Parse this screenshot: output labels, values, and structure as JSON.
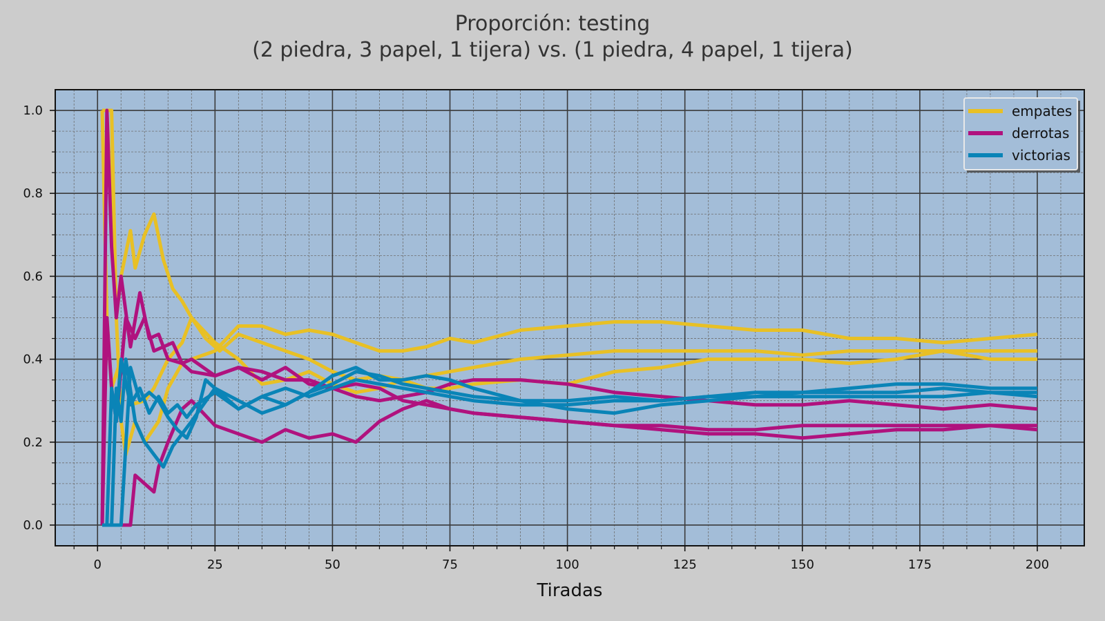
{
  "chart_data": {
    "type": "line",
    "title": "Proporción: testing",
    "subtitle": "(2 piedra, 3 papel, 1 tijera) vs. (1 piedra, 4 papel, 1 tijera)",
    "xlabel": "Tiradas",
    "ylabel": "",
    "xlim": [
      -9,
      210
    ],
    "ylim": [
      -0.05,
      1.05
    ],
    "xticks": [
      0,
      25,
      50,
      75,
      100,
      125,
      150,
      175,
      200
    ],
    "yticks": [
      0.0,
      0.2,
      0.4,
      0.6,
      0.8,
      1.0
    ],
    "xtick_labels": [
      "0",
      "25",
      "50",
      "75",
      "100",
      "125",
      "150",
      "175",
      "200"
    ],
    "ytick_labels": [
      "0.0",
      "0.2",
      "0.4",
      "0.6",
      "0.8",
      "1.0"
    ],
    "grid": "major and minor",
    "legend_position": "top-right",
    "background": "#a3bdd8",
    "series": [
      {
        "name": "empates",
        "color": "#e8c025",
        "show_in_legend": true,
        "x": [
          1,
          2,
          4,
          5,
          7,
          8,
          10,
          12,
          14,
          16,
          18,
          20,
          23,
          26,
          30,
          35,
          40,
          45,
          50,
          55,
          60,
          65,
          70,
          75,
          80,
          90,
          100,
          110,
          120,
          130,
          140,
          150,
          160,
          170,
          180,
          190,
          200
        ],
        "y": [
          1.0,
          1.0,
          0.5,
          0.6,
          0.71,
          0.62,
          0.7,
          0.75,
          0.64,
          0.57,
          0.54,
          0.5,
          0.45,
          0.42,
          0.46,
          0.44,
          0.42,
          0.4,
          0.37,
          0.35,
          0.36,
          0.35,
          0.36,
          0.37,
          0.38,
          0.4,
          0.41,
          0.42,
          0.42,
          0.42,
          0.42,
          0.41,
          0.42,
          0.42,
          0.42,
          0.42,
          0.42
        ]
      },
      {
        "name": "empates",
        "color": "#e8c025",
        "show_in_legend": false,
        "x": [
          1,
          3,
          4,
          5,
          6,
          8,
          10,
          13,
          15,
          18,
          20,
          25,
          30,
          35,
          40,
          45,
          50,
          55,
          60,
          65,
          70,
          75,
          80,
          90,
          100,
          110,
          120,
          130,
          140,
          150,
          160,
          170,
          180,
          190,
          200
        ],
        "y": [
          1.0,
          1.0,
          0.5,
          0.25,
          0.17,
          0.25,
          0.2,
          0.25,
          0.33,
          0.39,
          0.4,
          0.42,
          0.48,
          0.48,
          0.46,
          0.47,
          0.46,
          0.44,
          0.42,
          0.42,
          0.43,
          0.45,
          0.44,
          0.47,
          0.48,
          0.49,
          0.49,
          0.48,
          0.47,
          0.47,
          0.45,
          0.45,
          0.44,
          0.45,
          0.46
        ]
      },
      {
        "name": "empates",
        "color": "#e8c025",
        "show_in_legend": false,
        "x": [
          1,
          2,
          3,
          5,
          7,
          10,
          12,
          15,
          18,
          20,
          25,
          30,
          35,
          40,
          45,
          50,
          55,
          60,
          65,
          70,
          75,
          80,
          90,
          100,
          110,
          120,
          130,
          140,
          150,
          160,
          170,
          180,
          190,
          200
        ],
        "y": [
          1.0,
          0.5,
          0.33,
          0.4,
          0.29,
          0.3,
          0.33,
          0.4,
          0.44,
          0.5,
          0.44,
          0.4,
          0.34,
          0.35,
          0.37,
          0.34,
          0.32,
          0.33,
          0.35,
          0.33,
          0.33,
          0.34,
          0.35,
          0.34,
          0.37,
          0.38,
          0.4,
          0.4,
          0.4,
          0.39,
          0.4,
          0.42,
          0.4,
          0.4
        ]
      },
      {
        "name": "derrotas",
        "color": "#b0127e",
        "show_in_legend": true,
        "x": [
          1,
          2,
          3,
          4,
          5,
          7,
          9,
          11,
          13,
          15,
          18,
          20,
          25,
          30,
          35,
          40,
          45,
          50,
          55,
          60,
          65,
          70,
          75,
          80,
          90,
          100,
          110,
          120,
          130,
          140,
          150,
          160,
          170,
          180,
          190,
          200
        ],
        "y": [
          0.0,
          1.0,
          0.67,
          0.5,
          0.6,
          0.43,
          0.56,
          0.45,
          0.46,
          0.4,
          0.39,
          0.37,
          0.36,
          0.38,
          0.37,
          0.35,
          0.35,
          0.33,
          0.34,
          0.33,
          0.3,
          0.29,
          0.28,
          0.27,
          0.26,
          0.25,
          0.24,
          0.24,
          0.23,
          0.23,
          0.24,
          0.24,
          0.24,
          0.24,
          0.24,
          0.24
        ]
      },
      {
        "name": "derrotas",
        "color": "#b0127e",
        "show_in_legend": false,
        "x": [
          1,
          2,
          3,
          4,
          6,
          8,
          10,
          12,
          14,
          16,
          18,
          20,
          25,
          30,
          35,
          40,
          45,
          50,
          55,
          60,
          65,
          70,
          75,
          80,
          90,
          100,
          110,
          120,
          130,
          140,
          150,
          160,
          170,
          180,
          190,
          200
        ],
        "y": [
          0.0,
          0.5,
          0.33,
          0.25,
          0.5,
          0.45,
          0.5,
          0.42,
          0.43,
          0.44,
          0.39,
          0.4,
          0.36,
          0.38,
          0.35,
          0.38,
          0.34,
          0.33,
          0.31,
          0.3,
          0.31,
          0.32,
          0.34,
          0.35,
          0.35,
          0.34,
          0.32,
          0.31,
          0.3,
          0.29,
          0.29,
          0.3,
          0.29,
          0.28,
          0.29,
          0.28
        ]
      },
      {
        "name": "derrotas",
        "color": "#b0127e",
        "show_in_legend": false,
        "x": [
          1,
          5,
          7,
          8,
          10,
          12,
          13,
          15,
          18,
          20,
          25,
          30,
          35,
          40,
          45,
          50,
          55,
          60,
          65,
          70,
          75,
          80,
          90,
          100,
          110,
          120,
          130,
          140,
          150,
          160,
          170,
          180,
          190,
          200
        ],
        "y": [
          0.0,
          0.0,
          0.0,
          0.12,
          0.1,
          0.08,
          0.14,
          0.2,
          0.28,
          0.3,
          0.24,
          0.22,
          0.2,
          0.23,
          0.21,
          0.22,
          0.2,
          0.25,
          0.28,
          0.3,
          0.28,
          0.27,
          0.26,
          0.25,
          0.24,
          0.23,
          0.22,
          0.22,
          0.21,
          0.22,
          0.23,
          0.23,
          0.24,
          0.23
        ]
      },
      {
        "name": "victorias",
        "color": "#0a84b7",
        "show_in_legend": true,
        "x": [
          1,
          3,
          4,
          5,
          6,
          8,
          10,
          12,
          14,
          16,
          18,
          20,
          25,
          30,
          35,
          40,
          45,
          50,
          55,
          60,
          65,
          70,
          75,
          80,
          90,
          100,
          110,
          120,
          130,
          140,
          150,
          160,
          170,
          180,
          190,
          200
        ],
        "y": [
          0.0,
          0.0,
          0.33,
          0.25,
          0.4,
          0.25,
          0.2,
          0.17,
          0.14,
          0.19,
          0.22,
          0.25,
          0.33,
          0.3,
          0.27,
          0.29,
          0.32,
          0.36,
          0.38,
          0.35,
          0.35,
          0.36,
          0.35,
          0.33,
          0.3,
          0.28,
          0.27,
          0.29,
          0.3,
          0.31,
          0.32,
          0.32,
          0.32,
          0.33,
          0.32,
          0.32
        ]
      },
      {
        "name": "victorias",
        "color": "#0a84b7",
        "show_in_legend": false,
        "x": [
          1,
          2,
          3,
          4,
          5,
          7,
          9,
          11,
          13,
          15,
          17,
          19,
          21,
          25,
          30,
          35,
          40,
          45,
          50,
          55,
          60,
          65,
          70,
          75,
          80,
          90,
          100,
          110,
          120,
          130,
          140,
          150,
          160,
          170,
          180,
          190,
          200
        ],
        "y": [
          0.0,
          0.0,
          0.33,
          0.25,
          0.4,
          0.29,
          0.33,
          0.27,
          0.31,
          0.27,
          0.29,
          0.26,
          0.29,
          0.32,
          0.28,
          0.31,
          0.29,
          0.32,
          0.34,
          0.37,
          0.36,
          0.34,
          0.33,
          0.32,
          0.31,
          0.3,
          0.3,
          0.31,
          0.3,
          0.31,
          0.32,
          0.32,
          0.33,
          0.34,
          0.34,
          0.33,
          0.33
        ]
      },
      {
        "name": "victorias",
        "color": "#0a84b7",
        "show_in_legend": false,
        "x": [
          1,
          2,
          4,
          5,
          7,
          9,
          11,
          13,
          15,
          17,
          19,
          21,
          23,
          25,
          30,
          35,
          40,
          45,
          50,
          55,
          60,
          65,
          70,
          75,
          80,
          90,
          100,
          110,
          120,
          130,
          140,
          150,
          160,
          170,
          180,
          190,
          200
        ],
        "y": [
          0.0,
          0.0,
          0.0,
          0.0,
          0.38,
          0.3,
          0.32,
          0.3,
          0.26,
          0.23,
          0.21,
          0.26,
          0.35,
          0.33,
          0.28,
          0.31,
          0.33,
          0.31,
          0.33,
          0.35,
          0.34,
          0.33,
          0.32,
          0.31,
          0.3,
          0.29,
          0.29,
          0.3,
          0.3,
          0.31,
          0.31,
          0.31,
          0.31,
          0.31,
          0.31,
          0.32,
          0.31
        ]
      }
    ]
  }
}
